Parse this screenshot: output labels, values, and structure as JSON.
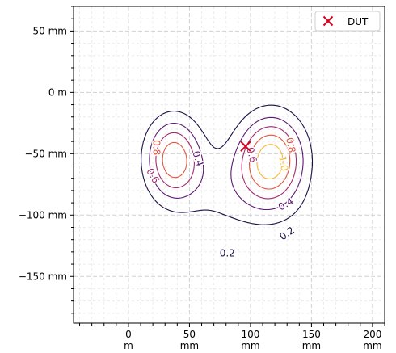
{
  "chart_data": {
    "type": "contour",
    "xlim": [
      -45,
      210
    ],
    "ylim": [
      -188,
      70
    ],
    "grid": true,
    "legend_placement": "top-right",
    "x_ticks": [
      {
        "value": 0,
        "label": [
          "0",
          "m"
        ]
      },
      {
        "value": 50,
        "label": [
          "50",
          "mm"
        ]
      },
      {
        "value": 100,
        "label": [
          "100",
          "mm"
        ]
      },
      {
        "value": 150,
        "label": [
          "150",
          "mm"
        ]
      },
      {
        "value": 200,
        "label": [
          "200",
          "mm"
        ]
      }
    ],
    "y_ticks": [
      {
        "value": 50,
        "label": "50 mm"
      },
      {
        "value": 0,
        "label": "0 m"
      },
      {
        "value": -50,
        "label": "−50 mm"
      },
      {
        "value": -100,
        "label": "−100 mm"
      },
      {
        "value": -150,
        "label": "−150 mm"
      }
    ],
    "contour_levels": [
      0.2,
      0.4,
      0.6,
      0.8,
      1.0
    ],
    "level_colors": [
      "#1c1046",
      "#5b1a73",
      "#a12b6c",
      "#e0573f",
      "#f6b83c"
    ],
    "contour_labels": [
      {
        "text": "0.4",
        "level": 0.4,
        "x": 57,
        "y": -54,
        "rotation": 72
      },
      {
        "text": "0.8",
        "level": 0.8,
        "x": 23,
        "y": -45,
        "rotation": 90
      },
      {
        "text": "0.6",
        "level": 0.6,
        "x": 20,
        "y": -68,
        "rotation": 60
      },
      {
        "text": "0.6",
        "level": 0.6,
        "x": 101,
        "y": -51,
        "rotation": 75
      },
      {
        "text": "0.8",
        "level": 0.8,
        "x": 133,
        "y": -43,
        "rotation": 80
      },
      {
        "text": "1.0",
        "level": 1.0,
        "x": 127,
        "y": -58,
        "rotation": 80
      },
      {
        "text": "0.4",
        "level": 0.4,
        "x": 129,
        "y": -91,
        "rotation": -30
      },
      {
        "text": "0.2",
        "level": 0.2,
        "x": 130,
        "y": -115,
        "rotation": -35
      },
      {
        "text": "0.2",
        "level": 0.2,
        "x": 81,
        "y": -131,
        "rotation": 0
      }
    ],
    "markers": [
      {
        "name": "DUT",
        "x": 96,
        "y": -44,
        "symbol": "x",
        "color": "#d7001e"
      }
    ],
    "legend": [
      {
        "label": "DUT",
        "symbol": "x",
        "color": "#d7001e"
      }
    ]
  }
}
